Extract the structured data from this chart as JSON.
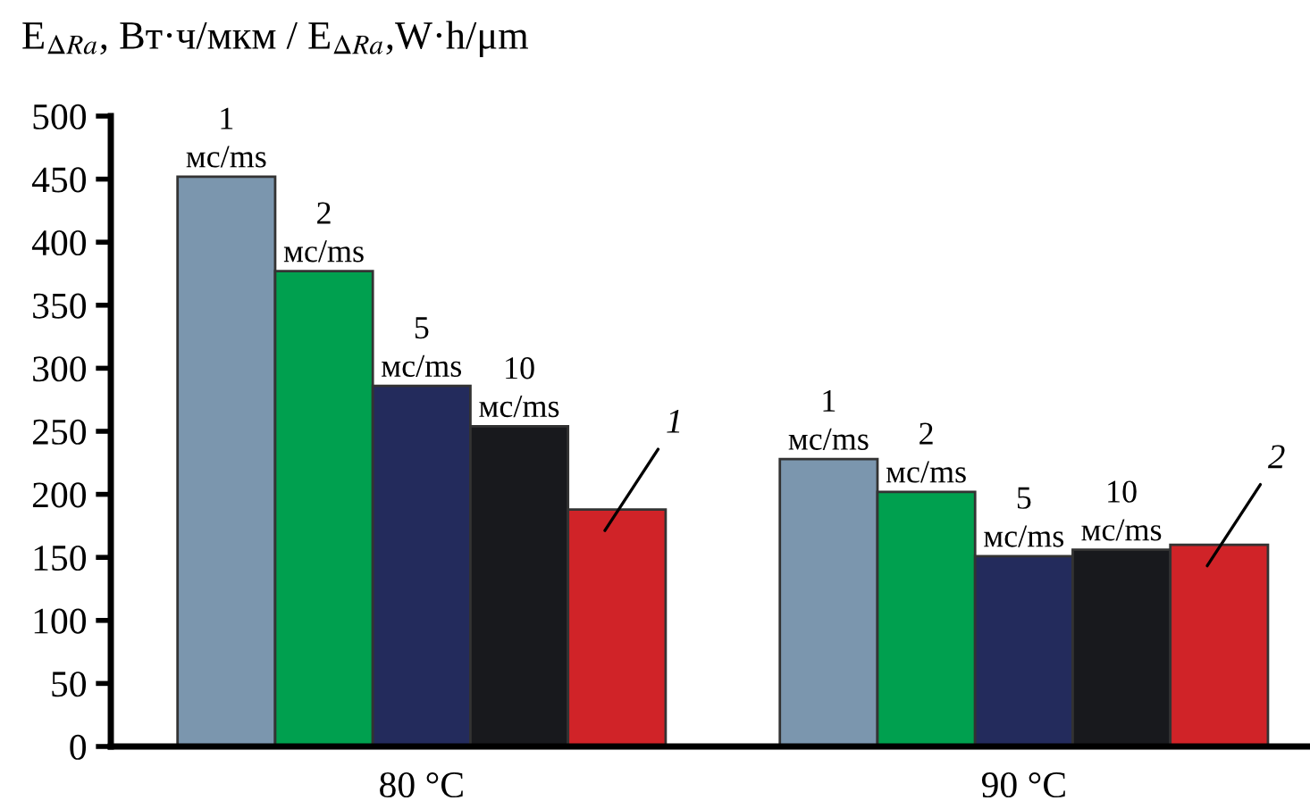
{
  "chart_data": {
    "type": "bar",
    "ylabel": "E$_{ΔRa}$, Вт·ч/мкм / E$_{ΔRa}$,W·h/μm",
    "categories": [
      "80 °C",
      "90 °C"
    ],
    "series": [
      {
        "name": "1\nмс/ms",
        "color": "#7b96ae",
        "values": [
          452,
          228
        ]
      },
      {
        "name": "2\nмс/ms",
        "color": "#00a04f",
        "values": [
          377,
          202
        ]
      },
      {
        "name": "5\nмс/ms",
        "color": "#232b5c",
        "values": [
          286,
          151
        ]
      },
      {
        "name": "10\nмс/ms",
        "color": "#18191d",
        "values": [
          254,
          156
        ]
      },
      {
        "color": "#d02328",
        "values": [
          188,
          160
        ]
      }
    ],
    "annotations": [
      "1",
      "2"
    ],
    "ylim": [
      0,
      500
    ],
    "yticks": [
      0,
      50,
      100,
      150,
      200,
      250,
      300,
      350,
      400,
      450,
      500
    ],
    "grid": false,
    "legend": false
  }
}
